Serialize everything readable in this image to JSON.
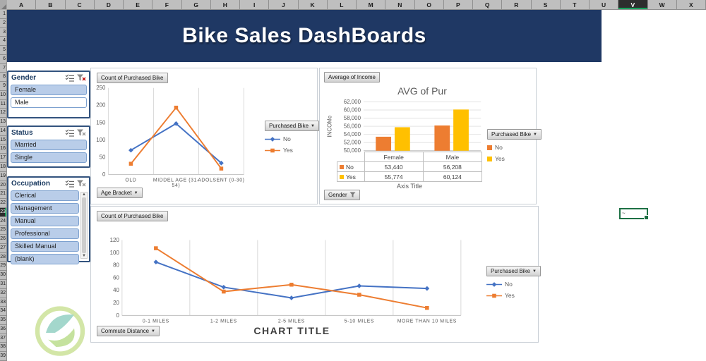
{
  "excel": {
    "columns": [
      "A",
      "B",
      "C",
      "D",
      "E",
      "F",
      "G",
      "H",
      "I",
      "J",
      "K",
      "L",
      "M",
      "N",
      "O",
      "P",
      "Q",
      "R",
      "S",
      "T",
      "U",
      "V",
      "W",
      "X"
    ],
    "selected_column": "V",
    "selected_row": 23,
    "row_count": 39,
    "active_cell_text": "~"
  },
  "banner": {
    "title": "Bike Sales DashBoards",
    "bg": "#1F3864"
  },
  "slicers": [
    {
      "title": "Gender",
      "filtered": true,
      "scrollbar": false,
      "items": [
        {
          "label": "Female",
          "selected": true
        },
        {
          "label": "Male",
          "selected": false
        }
      ]
    },
    {
      "title": "Status",
      "filtered": false,
      "scrollbar": false,
      "items": [
        {
          "label": "Married",
          "selected": true
        },
        {
          "label": "Single",
          "selected": true
        }
      ]
    },
    {
      "title": "Occupation",
      "filtered": false,
      "scrollbar": true,
      "items": [
        {
          "label": "Clerical",
          "selected": true
        },
        {
          "label": "Management",
          "selected": true
        },
        {
          "label": "Manual",
          "selected": true
        },
        {
          "label": "Professional",
          "selected": true
        },
        {
          "label": "Skilled Manual",
          "selected": true
        },
        {
          "label": "(blank)",
          "selected": true
        }
      ]
    }
  ],
  "chart_data": [
    {
      "type": "line",
      "pivot_value_button": "Count of Purchased Bike",
      "axis_field_button": "Age Bracket",
      "legend_field_button": "Purchased Bike",
      "categories": [
        "OLD",
        "MIDDEL AGE (31-54)",
        "ADOLSENT (0-30)"
      ],
      "series": [
        {
          "name": "No",
          "color": "#4472C4",
          "marker": "diamond",
          "values": [
            70,
            147,
            33
          ]
        },
        {
          "name": "Yes",
          "color": "#ED7D31",
          "marker": "square",
          "values": [
            31,
            193,
            17
          ]
        }
      ],
      "ylim": [
        0,
        250
      ],
      "ytick_step": 50,
      "grid": "vertical-category-separators",
      "legend_position": "right"
    },
    {
      "type": "bar",
      "title": "AVG of Pur",
      "pivot_value_button": "Average of Income",
      "axis_field_button": "Gender",
      "axis_field_filtered": true,
      "legend_field_button": "Purchased Bike",
      "ylabel": "INCOMe",
      "xlabel": "Axis Title",
      "categories": [
        "Female",
        "Male"
      ],
      "series": [
        {
          "name": "No",
          "color": "#ED7D31",
          "values": [
            53440,
            56208
          ]
        },
        {
          "name": "Yes",
          "color": "#FFC000",
          "values": [
            55774,
            60124
          ]
        }
      ],
      "ylim": [
        50000,
        62000
      ],
      "ytick_step": 2000,
      "grid": "horizontal",
      "data_table": true,
      "legend_position": "right"
    },
    {
      "type": "line",
      "title": "CHART TITLE",
      "pivot_value_button": "Count of Purchased Bike",
      "axis_field_button": "Commute Distance",
      "legend_field_button": "Purchased Bike",
      "categories": [
        "0-1 MILES",
        "1-2 MILES",
        "2-5 MILES",
        "5-10 MILES",
        "MORE THAN 10 MILES"
      ],
      "series": [
        {
          "name": "No",
          "color": "#4472C4",
          "marker": "diamond",
          "values": [
            85,
            45,
            28,
            47,
            43
          ]
        },
        {
          "name": "Yes",
          "color": "#ED7D31",
          "marker": "square",
          "values": [
            107,
            38,
            49,
            33,
            12
          ]
        }
      ],
      "ylim": [
        0,
        120
      ],
      "ytick_step": 20,
      "grid": "vertical-category-separators",
      "legend_position": "right"
    }
  ]
}
